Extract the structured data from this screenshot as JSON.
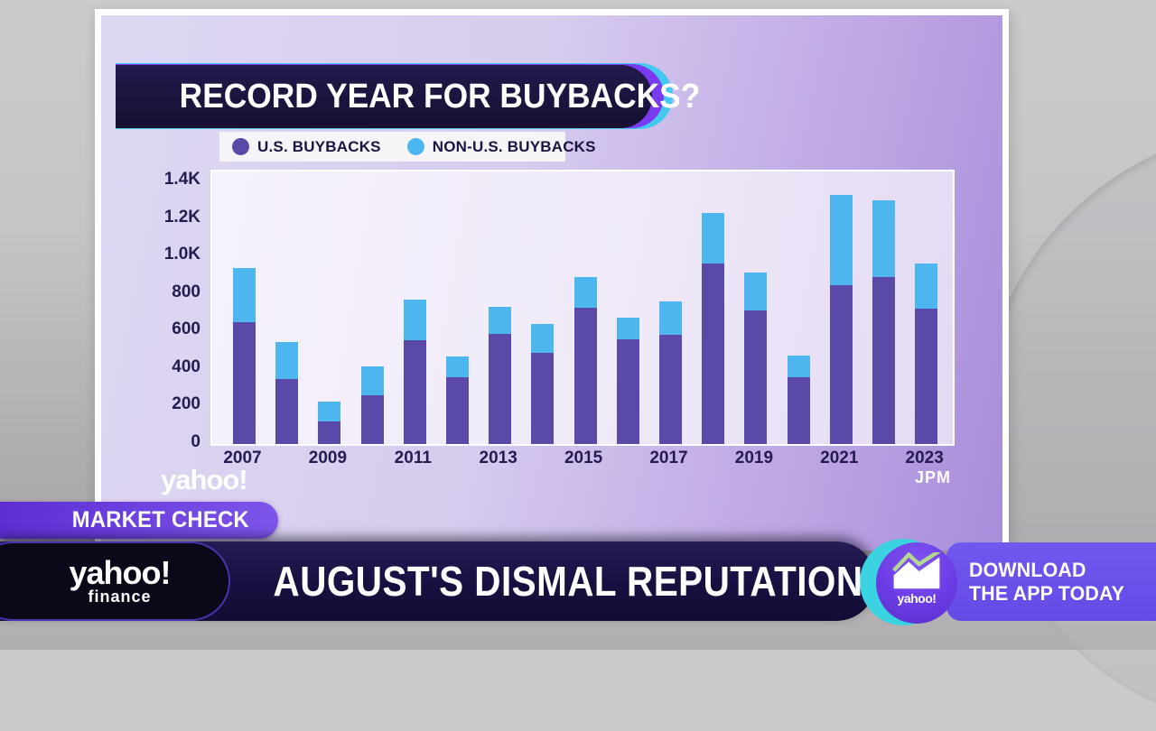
{
  "chart_card": {
    "title": "RECORD YEAR FOR BUYBACKS?",
    "watermark": "yahoo!",
    "source": "JPM",
    "legend": [
      {
        "label": "U.S. BUYBACKS",
        "color": "#5a49a6"
      },
      {
        "label": "NON-U.S. BUYBACKS",
        "color": "#4db6ef"
      }
    ]
  },
  "chart_data": {
    "type": "bar",
    "stacked": true,
    "title": "RECORD YEAR FOR BUYBACKS?",
    "source_label": "JPM",
    "categories": [
      "2007",
      "2008",
      "2009",
      "2010",
      "2011",
      "2012",
      "2013",
      "2014",
      "2015",
      "2016",
      "2017",
      "2018",
      "2019",
      "2020",
      "2021",
      "2022",
      "2023"
    ],
    "series": [
      {
        "name": "U.S. BUYBACKS",
        "color": "#5a49a6",
        "values": [
          650,
          345,
          120,
          260,
          555,
          355,
          585,
          485,
          725,
          560,
          580,
          960,
          710,
          355,
          845,
          890,
          720
        ]
      },
      {
        "name": "NON-U.S. BUYBACKS",
        "color": "#4db6ef",
        "values": [
          290,
          200,
          105,
          155,
          215,
          110,
          145,
          155,
          165,
          115,
          180,
          270,
          205,
          115,
          485,
          410,
          240
        ]
      }
    ],
    "ylim": [
      0,
      1400
    ],
    "yticks": [
      {
        "value": 0,
        "label": "0"
      },
      {
        "value": 200,
        "label": "200"
      },
      {
        "value": 400,
        "label": "400"
      },
      {
        "value": 600,
        "label": "600"
      },
      {
        "value": 800,
        "label": "800"
      },
      {
        "value": 1000,
        "label": "1.0K"
      },
      {
        "value": 1200,
        "label": "1.2K"
      },
      {
        "value": 1400,
        "label": "1.4K"
      }
    ],
    "xticks_shown": [
      "2007",
      "2009",
      "2011",
      "2013",
      "2015",
      "2017",
      "2019",
      "2021",
      "2023"
    ],
    "grid": false,
    "legend_position": "top"
  },
  "badge": {
    "label": "MARKET CHECK"
  },
  "lower_third": {
    "brand_logo": {
      "title": "yahoo!",
      "subtitle": "finance"
    },
    "headline": "AUGUST'S DISMAL REPUTATION",
    "app_promo": {
      "icon": "chart-line-icon",
      "icon_brand": "yahoo!",
      "line1": "DOWNLOAD",
      "line2": "THE APP TODAY"
    }
  },
  "colors": {
    "us_bar": "#5a49a6",
    "non_us_bar": "#4db6ef",
    "banner_navy": "#1a1340",
    "banner_accent_purple": "#7a3bf0",
    "banner_accent_blue": "#45c8f0",
    "badge_gradient_start": "#5c2ed2",
    "badge_gradient_end": "#7e55ea",
    "promo_panel_purple": "#6e55ee",
    "teal_accent": "#3bd2e2",
    "promo_icon_green": "#b6d78e"
  }
}
